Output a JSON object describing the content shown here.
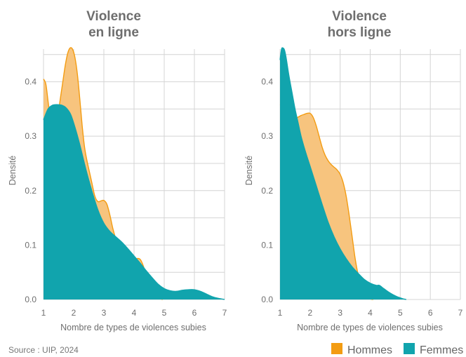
{
  "colors": {
    "hommes": "#f39c12",
    "hommes_fill": "#f7c47e",
    "femmes": "#11a4ad",
    "grid": "#d4d4d4"
  },
  "source": "Source : UIP, 2024",
  "legend": [
    {
      "label": "Hommes",
      "color": "#f39c12"
    },
    {
      "label": "Femmes",
      "color": "#11a4ad"
    }
  ],
  "chart_data": [
    {
      "type": "area",
      "title_lines": [
        "Violence",
        "en ligne"
      ],
      "xlabel": "Nombre de types de violences subies",
      "ylabel": "Densité",
      "xlim": [
        1,
        7
      ],
      "ylim": [
        0,
        0.46
      ],
      "xticks": [
        1,
        2,
        3,
        4,
        5,
        6,
        7
      ],
      "yticks": [
        0.0,
        0.1,
        0.2,
        0.3,
        0.4
      ],
      "ytick_labels": [
        "0.0",
        "0.1",
        "0.2",
        "0.3",
        "0.4"
      ],
      "xtick_labels": [
        "1",
        "2",
        "3",
        "4",
        "5",
        "6",
        "7"
      ],
      "grid": true,
      "series": [
        {
          "name": "Hommes",
          "x": [
            1,
            1.08,
            1.16,
            1.24,
            1.32,
            1.4,
            1.48,
            1.56,
            1.64,
            1.72,
            1.8,
            1.88,
            1.96,
            2.04,
            2.12,
            2.2,
            2.28,
            2.36,
            2.44,
            2.52,
            2.6,
            2.7,
            2.8,
            2.9,
            3.0,
            3.1,
            3.2,
            3.3,
            3.45,
            3.6,
            3.8,
            4.0,
            4.2,
            4.35,
            4.5,
            4.7,
            4.85,
            4.95
          ],
          "y": [
            0.405,
            0.395,
            0.36,
            0.33,
            0.315,
            0.318,
            0.34,
            0.37,
            0.4,
            0.43,
            0.452,
            0.462,
            0.46,
            0.445,
            0.415,
            0.37,
            0.32,
            0.28,
            0.255,
            0.235,
            0.215,
            0.19,
            0.18,
            0.181,
            0.182,
            0.175,
            0.155,
            0.13,
            0.1,
            0.075,
            0.074,
            0.074,
            0.074,
            0.055,
            0.03,
            0.01,
            0.002,
            0.0
          ]
        },
        {
          "name": "Femmes",
          "x": [
            1,
            1.15,
            1.3,
            1.45,
            1.6,
            1.75,
            1.9,
            2.05,
            2.2,
            2.4,
            2.6,
            2.8,
            3.0,
            3.2,
            3.4,
            3.6,
            3.8,
            4.0,
            4.2,
            4.4,
            4.6,
            4.8,
            5.0,
            5.2,
            5.4,
            5.6,
            5.8,
            6.0,
            6.2,
            6.4,
            6.6,
            6.8,
            7.0
          ],
          "y": [
            0.33,
            0.35,
            0.357,
            0.358,
            0.357,
            0.352,
            0.34,
            0.315,
            0.285,
            0.24,
            0.2,
            0.165,
            0.14,
            0.125,
            0.115,
            0.105,
            0.093,
            0.08,
            0.067,
            0.053,
            0.04,
            0.028,
            0.02,
            0.016,
            0.015,
            0.017,
            0.018,
            0.018,
            0.015,
            0.01,
            0.005,
            0.002,
            0.0
          ]
        }
      ]
    },
    {
      "type": "area",
      "title_lines": [
        "Violence",
        "hors ligne"
      ],
      "xlabel": "Nombre de types de violences subies",
      "ylabel": "Densité",
      "xlim": [
        1,
        7
      ],
      "ylim": [
        0,
        0.46
      ],
      "xticks": [
        1,
        2,
        3,
        4,
        5,
        6,
        7
      ],
      "yticks": [
        0.0,
        0.1,
        0.2,
        0.3,
        0.4
      ],
      "ytick_labels": [
        "0.0",
        "0.1",
        "0.2",
        "0.3",
        "0.4"
      ],
      "xtick_labels": [
        "1",
        "2",
        "3",
        "4",
        "5",
        "6",
        "7"
      ],
      "grid": true,
      "series": [
        {
          "name": "Hommes",
          "x": [
            1,
            1.08,
            1.16,
            1.24,
            1.32,
            1.4,
            1.5,
            1.6,
            1.7,
            1.8,
            1.9,
            2.0,
            2.1,
            2.2,
            2.3,
            2.4,
            2.5,
            2.6,
            2.7,
            2.8,
            2.9,
            3.0,
            3.1,
            3.2,
            3.3,
            3.4,
            3.5,
            3.6,
            3.7,
            3.8,
            3.9,
            4.0,
            4.1
          ],
          "y": [
            0.357,
            0.359,
            0.358,
            0.35,
            0.34,
            0.333,
            0.332,
            0.335,
            0.338,
            0.34,
            0.342,
            0.342,
            0.335,
            0.32,
            0.3,
            0.28,
            0.265,
            0.255,
            0.248,
            0.243,
            0.238,
            0.23,
            0.215,
            0.19,
            0.155,
            0.115,
            0.075,
            0.045,
            0.025,
            0.012,
            0.004,
            0.001,
            0.0
          ]
        },
        {
          "name": "Femmes",
          "x": [
            1,
            1.05,
            1.1,
            1.15,
            1.2,
            1.3,
            1.4,
            1.5,
            1.6,
            1.7,
            1.8,
            1.9,
            2.0,
            2.2,
            2.4,
            2.6,
            2.8,
            3.0,
            3.2,
            3.4,
            3.6,
            3.8,
            4.0,
            4.2,
            4.3,
            4.45,
            4.6,
            4.75,
            4.9,
            5.0,
            5.1,
            5.2
          ],
          "y": [
            0.44,
            0.46,
            0.462,
            0.458,
            0.445,
            0.41,
            0.38,
            0.35,
            0.325,
            0.3,
            0.28,
            0.262,
            0.245,
            0.21,
            0.175,
            0.142,
            0.115,
            0.093,
            0.075,
            0.06,
            0.048,
            0.037,
            0.03,
            0.026,
            0.026,
            0.02,
            0.014,
            0.009,
            0.005,
            0.003,
            0.001,
            0.0
          ]
        }
      ]
    }
  ]
}
